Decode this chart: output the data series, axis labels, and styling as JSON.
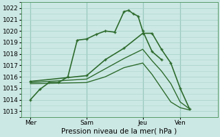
{
  "xlabel": "Pression niveau de la mer( hPa )",
  "background_color": "#cce8e4",
  "grid_color": "#aad4cc",
  "line_color": "#2d6b2d",
  "ylim": [
    1012.5,
    1022.5
  ],
  "xtick_labels": [
    "Mer",
    "Sam",
    "Jeu",
    "Ven"
  ],
  "xtick_positions": [
    0.5,
    3.5,
    6.5,
    8.5
  ],
  "xlim": [
    0,
    10.5
  ],
  "lines": [
    {
      "x": [
        0.5,
        1.0,
        1.5,
        2.0,
        2.5,
        3.0,
        3.5,
        4.0,
        4.5,
        5.0,
        5.5,
        5.75,
        6.0,
        6.25,
        6.5,
        7.0,
        7.5
      ],
      "y": [
        1014.0,
        1014.9,
        1015.5,
        1015.5,
        1016.0,
        1019.2,
        1019.3,
        1019.7,
        1020.0,
        1019.9,
        1021.7,
        1021.8,
        1021.5,
        1021.3,
        1020.0,
        1018.2,
        1017.5
      ],
      "marker": true,
      "lw": 1.2
    },
    {
      "x": [
        0.5,
        3.5,
        4.5,
        5.5,
        6.5,
        7.0,
        7.5,
        8.0,
        8.5,
        9.0
      ],
      "y": [
        1015.6,
        1016.1,
        1017.5,
        1018.5,
        1019.8,
        1019.8,
        1018.4,
        1017.2,
        1015.0,
        1013.2
      ],
      "marker": true,
      "lw": 1.2
    },
    {
      "x": [
        0.5,
        3.5,
        4.5,
        5.5,
        6.5,
        7.0,
        7.5,
        8.0,
        8.5,
        9.0
      ],
      "y": [
        1015.5,
        1015.8,
        1016.7,
        1017.6,
        1018.4,
        1017.4,
        1016.5,
        1015.4,
        1013.8,
        1013.2
      ],
      "marker": false,
      "lw": 1.0
    },
    {
      "x": [
        0.5,
        3.5,
        4.5,
        5.5,
        6.5,
        7.0,
        7.5,
        8.0,
        8.5,
        9.0
      ],
      "y": [
        1015.4,
        1015.5,
        1016.0,
        1016.8,
        1017.2,
        1016.2,
        1015.0,
        1013.8,
        1013.3,
        1013.1
      ],
      "marker": false,
      "lw": 1.0
    }
  ],
  "vlines_x": [
    0.5,
    3.5,
    6.5,
    8.5
  ],
  "figsize": [
    3.2,
    2.0
  ],
  "dpi": 100,
  "label_fontsize": 6.5,
  "xlabel_fontsize": 7.5
}
